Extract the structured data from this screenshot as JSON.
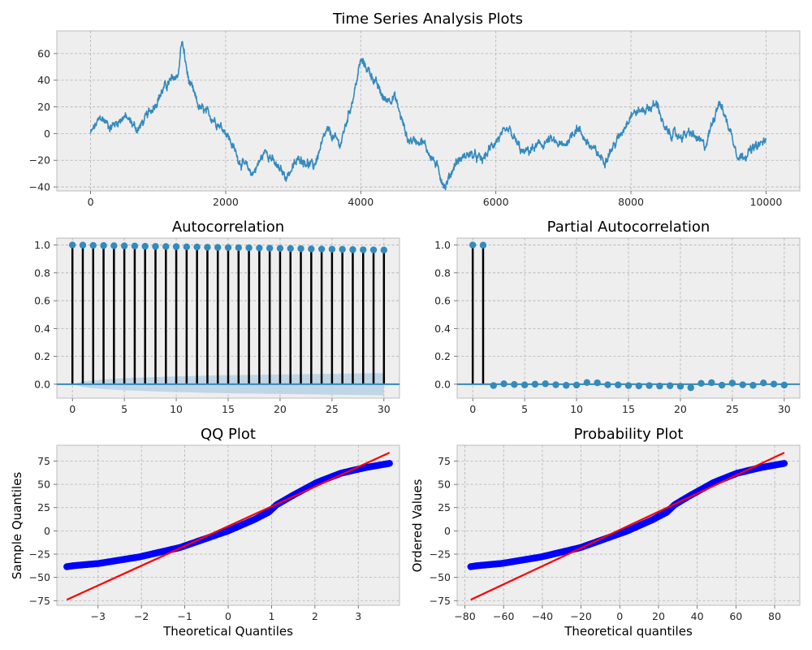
{
  "colors": {
    "series": "#348abd",
    "band": "#b4cfe3",
    "qq_points": "#0000ff",
    "fit_line": "#ff0000",
    "stem": "#000000"
  },
  "chart_data": [
    {
      "id": "ts",
      "type": "line",
      "title": "Time Series Analysis Plots",
      "xlim": [
        -500,
        10500
      ],
      "ylim": [
        -43,
        77
      ],
      "xticks": [
        0,
        2000,
        4000,
        6000,
        8000,
        10000
      ],
      "yticks": [
        -40,
        -20,
        0,
        20,
        40,
        60
      ],
      "x_range": [
        0,
        10000
      ],
      "anchors": [
        [
          0,
          0
        ],
        [
          150,
          12
        ],
        [
          300,
          5
        ],
        [
          500,
          13
        ],
        [
          700,
          3
        ],
        [
          900,
          18
        ],
        [
          1100,
          35
        ],
        [
          1300,
          45
        ],
        [
          1350,
          70
        ],
        [
          1450,
          40
        ],
        [
          1600,
          20
        ],
        [
          1800,
          12
        ],
        [
          2000,
          2
        ],
        [
          2200,
          -20
        ],
        [
          2400,
          -30
        ],
        [
          2600,
          -12
        ],
        [
          2750,
          -25
        ],
        [
          2900,
          -32
        ],
        [
          3100,
          -18
        ],
        [
          3300,
          -25
        ],
        [
          3500,
          2
        ],
        [
          3700,
          -8
        ],
        [
          3900,
          30
        ],
        [
          4000,
          55
        ],
        [
          4150,
          45
        ],
        [
          4350,
          25
        ],
        [
          4500,
          28
        ],
        [
          4700,
          -5
        ],
        [
          4900,
          -5
        ],
        [
          5100,
          -22
        ],
        [
          5250,
          -40
        ],
        [
          5400,
          -22
        ],
        [
          5600,
          -15
        ],
        [
          5800,
          -20
        ],
        [
          6000,
          -5
        ],
        [
          6200,
          2
        ],
        [
          6400,
          -15
        ],
        [
          6600,
          -10
        ],
        [
          6800,
          -5
        ],
        [
          7000,
          -10
        ],
        [
          7200,
          5
        ],
        [
          7400,
          -10
        ],
        [
          7600,
          -20
        ],
        [
          7800,
          -5
        ],
        [
          8000,
          15
        ],
        [
          8200,
          18
        ],
        [
          8400,
          22
        ],
        [
          8500,
          2
        ],
        [
          8700,
          -2
        ],
        [
          8900,
          0
        ],
        [
          9100,
          -10
        ],
        [
          9300,
          25
        ],
        [
          9450,
          5
        ],
        [
          9600,
          -18
        ],
        [
          9800,
          -12
        ],
        [
          10000,
          -5
        ]
      ]
    },
    {
      "id": "acf",
      "type": "stem",
      "title": "Autocorrelation",
      "xlim": [
        -1.5,
        31.5
      ],
      "ylim": [
        -0.1,
        1.05
      ],
      "xticks": [
        0,
        5,
        10,
        15,
        20,
        25,
        30
      ],
      "yticks": [
        0.0,
        0.2,
        0.4,
        0.6,
        0.8,
        1.0
      ],
      "lags": [
        0,
        1,
        2,
        3,
        4,
        5,
        6,
        7,
        8,
        9,
        10,
        11,
        12,
        13,
        14,
        15,
        16,
        17,
        18,
        19,
        20,
        21,
        22,
        23,
        24,
        25,
        26,
        27,
        28,
        29,
        30
      ],
      "values": [
        1.0,
        0.999,
        0.997,
        0.996,
        0.995,
        0.994,
        0.993,
        0.991,
        0.99,
        0.989,
        0.988,
        0.987,
        0.986,
        0.984,
        0.983,
        0.982,
        0.981,
        0.98,
        0.979,
        0.977,
        0.976,
        0.975,
        0.974,
        0.972,
        0.971,
        0.97,
        0.969,
        0.967,
        0.966,
        0.965,
        0.964
      ],
      "confint": [
        0.0,
        0.02,
        0.028,
        0.034,
        0.039,
        0.043,
        0.046,
        0.049,
        0.052,
        0.054,
        0.056,
        0.058,
        0.06,
        0.062,
        0.064,
        0.065,
        0.066,
        0.067,
        0.068,
        0.069,
        0.07,
        0.071,
        0.072,
        0.073,
        0.074,
        0.075,
        0.076,
        0.077,
        0.078,
        0.079,
        0.08
      ]
    },
    {
      "id": "pacf",
      "type": "stem",
      "title": "Partial Autocorrelation",
      "xlim": [
        -1.5,
        31.5
      ],
      "ylim": [
        -0.1,
        1.05
      ],
      "xticks": [
        0,
        5,
        10,
        15,
        20,
        25,
        30
      ],
      "yticks": [
        0.0,
        0.2,
        0.4,
        0.6,
        0.8,
        1.0
      ],
      "lags": [
        0,
        1,
        2,
        3,
        4,
        5,
        6,
        7,
        8,
        9,
        10,
        11,
        12,
        13,
        14,
        15,
        16,
        17,
        18,
        19,
        20,
        21,
        22,
        23,
        24,
        25,
        26,
        27,
        28,
        29,
        30
      ],
      "values": [
        1.0,
        0.999,
        -0.01,
        0.003,
        -0.002,
        -0.005,
        0.0,
        0.003,
        -0.004,
        -0.008,
        -0.006,
        0.012,
        0.01,
        -0.004,
        -0.005,
        -0.01,
        -0.012,
        -0.01,
        -0.013,
        -0.011,
        -0.015,
        -0.025,
        0.006,
        0.011,
        -0.007,
        0.008,
        -0.004,
        -0.008,
        0.009,
        0.001,
        -0.006
      ]
    },
    {
      "id": "qq",
      "type": "scatter",
      "title": "QQ Plot",
      "xlabel": "Theoretical Quantiles",
      "ylabel": "Sample Quantiles",
      "xlim": [
        -3.95,
        3.95
      ],
      "ylim": [
        -80,
        92
      ],
      "xticks": [
        -3,
        -2,
        -1,
        0,
        1,
        2,
        3
      ],
      "yticks": [
        -75,
        -50,
        -25,
        0,
        25,
        50,
        75
      ],
      "fit_line": {
        "x": [
          -3.72,
          3.72
        ],
        "y": [
          -74,
          84
        ]
      },
      "theoretical_range": [
        -3.72,
        3.72
      ],
      "sample_range": [
        -38.5,
        72.5
      ]
    },
    {
      "id": "prob",
      "type": "scatter",
      "title": "Probability Plot",
      "xlabel": "Theoretical quantiles",
      "ylabel": "Ordered Values",
      "xlim": [
        -84,
        93
      ],
      "ylim": [
        -80,
        92
      ],
      "xticks": [
        -80,
        -60,
        -40,
        -20,
        0,
        20,
        40,
        60,
        80
      ],
      "yticks": [
        -75,
        -50,
        -25,
        0,
        25,
        50,
        75
      ],
      "fit_line": {
        "x": [
          -77,
          85
        ],
        "y": [
          -74,
          84
        ]
      },
      "theoretical_range": [
        -77,
        85
      ],
      "sample_range": [
        -38.5,
        72.5
      ]
    }
  ]
}
